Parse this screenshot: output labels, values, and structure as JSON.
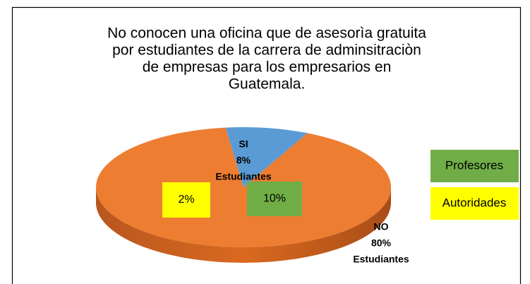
{
  "chart_data": {
    "type": "pie",
    "title": [
      "No conocen una oficina que de asesorìa gratuita",
      "por estudiantes de la carrera de adminsitraciòn",
      "de empresas para los empresarios en",
      "Guatemala."
    ],
    "categories": [
      "SI",
      "NO"
    ],
    "values": [
      8,
      80
    ],
    "value_labels": [
      "8%",
      "80%"
    ],
    "group_labels": [
      "Estudiantes",
      "Estudiantes"
    ],
    "colors": [
      "#5b9bd5",
      "#ed7d31"
    ],
    "boxes": [
      {
        "label": "2%",
        "value": 2,
        "color": "#ffff00"
      },
      {
        "label": "10%",
        "value": 10,
        "color": "#70ad47"
      }
    ],
    "legend": [
      {
        "name": "Profesores",
        "color": "#70ad47"
      },
      {
        "name": "Autoridades",
        "color": "#ffff00"
      }
    ]
  }
}
